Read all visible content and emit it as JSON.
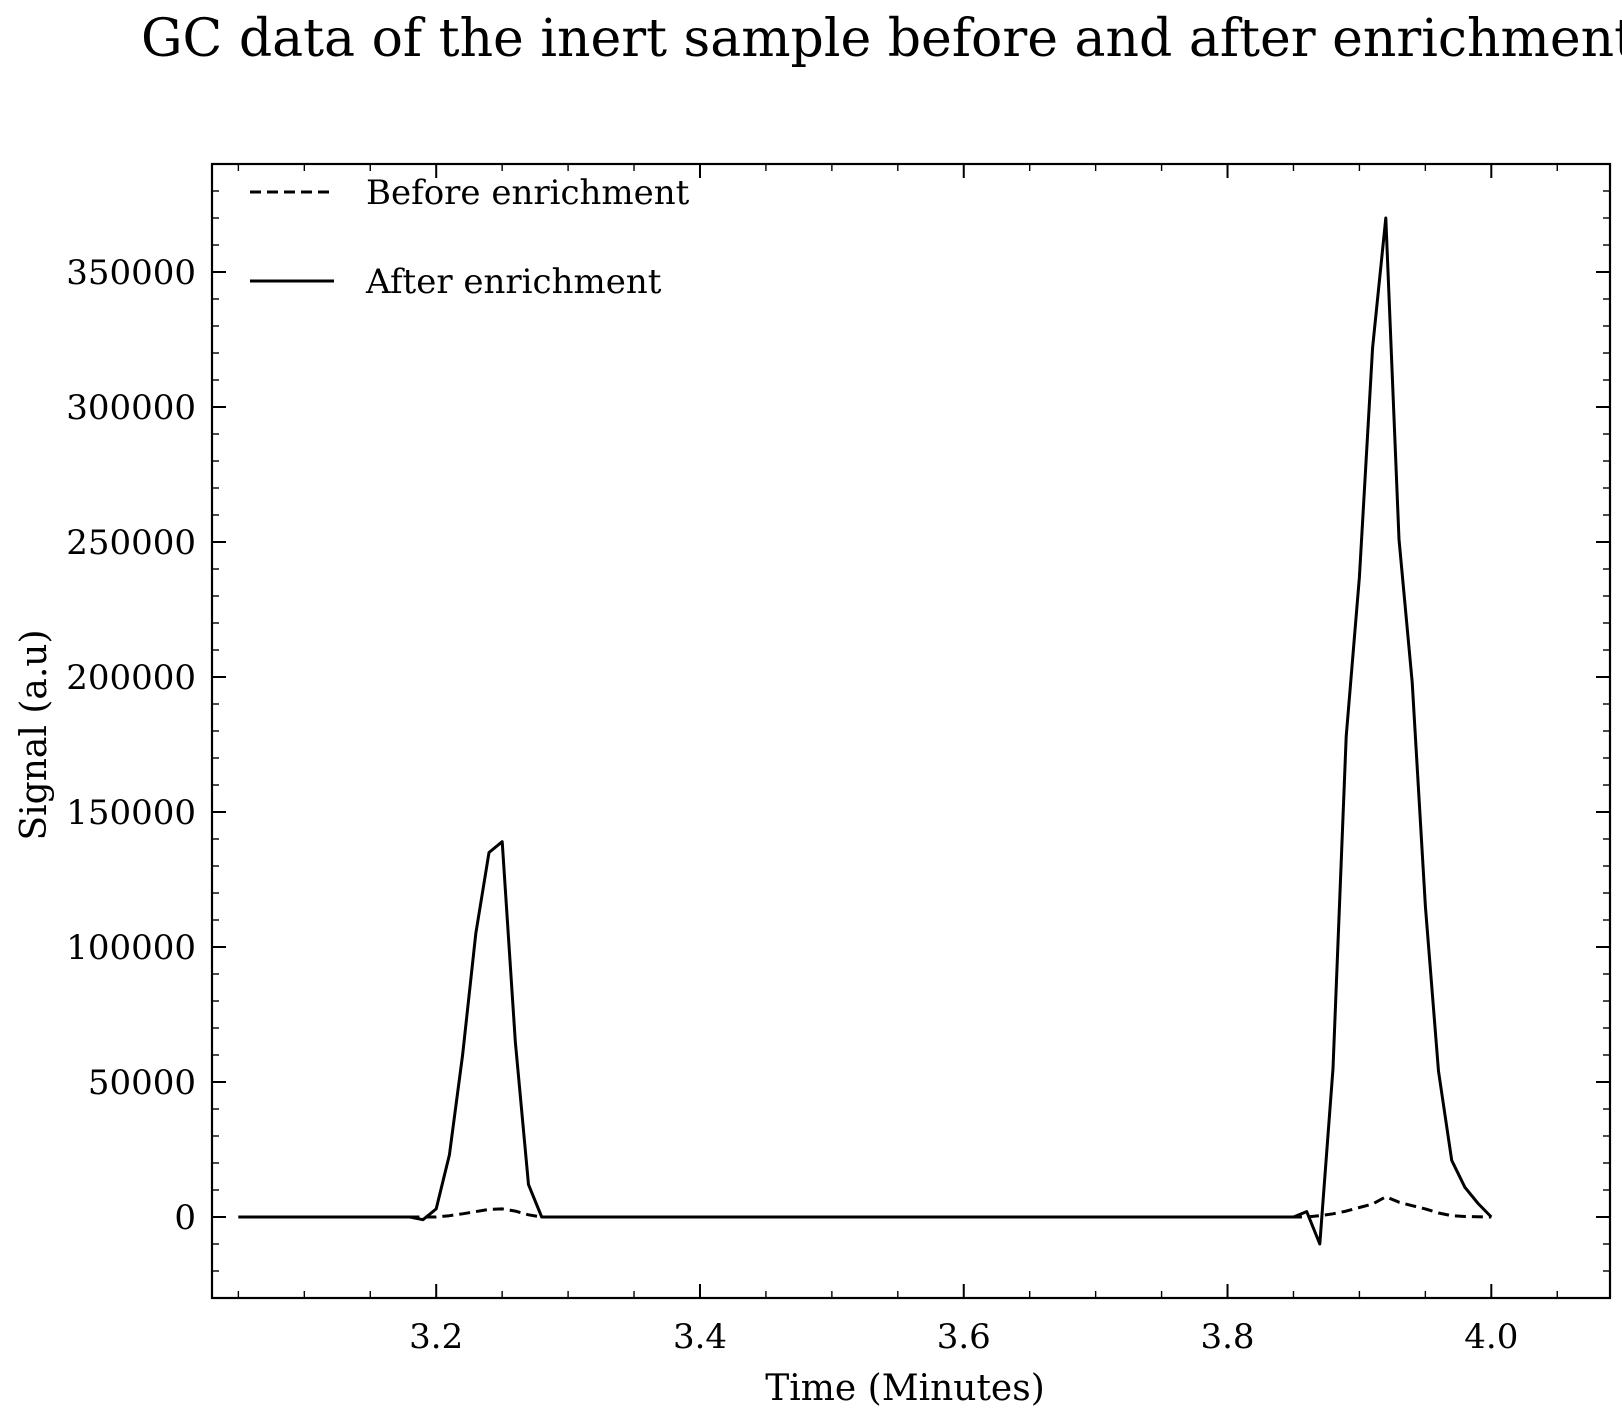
{
  "chart_data": {
    "type": "line",
    "title": "GC data of the inert sample before and after enrichment",
    "xlabel": "Time (Minutes)",
    "ylabel": "Signal (a.u)",
    "xlim": [
      3.03,
      4.09
    ],
    "ylim": [
      -30000,
      390000
    ],
    "x_ticks": [
      3.2,
      3.4,
      3.6,
      3.8,
      4.0
    ],
    "x_tick_labels": [
      "3.2",
      "3.4",
      "3.6",
      "3.8",
      "4.0"
    ],
    "y_ticks": [
      0,
      50000,
      100000,
      150000,
      200000,
      250000,
      300000,
      350000
    ],
    "y_tick_labels": [
      "0",
      "50000",
      "100000",
      "150000",
      "200000",
      "250000",
      "300000",
      "350000"
    ],
    "grid": false,
    "legend_position": "top-left",
    "series": [
      {
        "name": "Before enrichment",
        "style": "dashed",
        "color": "#000000",
        "points": [
          [
            3.05,
            0
          ],
          [
            3.19,
            0
          ],
          [
            3.2,
            0
          ],
          [
            3.21,
            500
          ],
          [
            3.22,
            1200
          ],
          [
            3.23,
            2000
          ],
          [
            3.24,
            2800
          ],
          [
            3.25,
            3000
          ],
          [
            3.26,
            2200
          ],
          [
            3.27,
            800
          ],
          [
            3.28,
            0
          ],
          [
            3.86,
            0
          ],
          [
            3.87,
            500
          ],
          [
            3.88,
            1200
          ],
          [
            3.89,
            2200
          ],
          [
            3.9,
            3500
          ],
          [
            3.91,
            4800
          ],
          [
            3.92,
            7500
          ],
          [
            3.93,
            5500
          ],
          [
            3.94,
            4200
          ],
          [
            3.95,
            3000
          ],
          [
            3.96,
            1500
          ],
          [
            3.97,
            500
          ],
          [
            3.98,
            200
          ],
          [
            4.0,
            0
          ]
        ]
      },
      {
        "name": "After enrichment",
        "style": "solid",
        "color": "#000000",
        "points": [
          [
            3.05,
            0
          ],
          [
            3.18,
            0
          ],
          [
            3.19,
            -1000
          ],
          [
            3.2,
            3000
          ],
          [
            3.21,
            23000
          ],
          [
            3.22,
            60000
          ],
          [
            3.23,
            105000
          ],
          [
            3.24,
            135000
          ],
          [
            3.25,
            139000
          ],
          [
            3.26,
            65000
          ],
          [
            3.27,
            12000
          ],
          [
            3.28,
            0
          ],
          [
            3.85,
            0
          ],
          [
            3.86,
            2000
          ],
          [
            3.87,
            -10000
          ],
          [
            3.88,
            55000
          ],
          [
            3.89,
            178000
          ],
          [
            3.9,
            237000
          ],
          [
            3.91,
            322000
          ],
          [
            3.92,
            370000
          ],
          [
            3.93,
            251000
          ],
          [
            3.94,
            198000
          ],
          [
            3.95,
            115000
          ],
          [
            3.96,
            54000
          ],
          [
            3.97,
            21000
          ],
          [
            3.98,
            11000
          ],
          [
            3.99,
            5000
          ],
          [
            4.0,
            0
          ]
        ]
      }
    ]
  }
}
